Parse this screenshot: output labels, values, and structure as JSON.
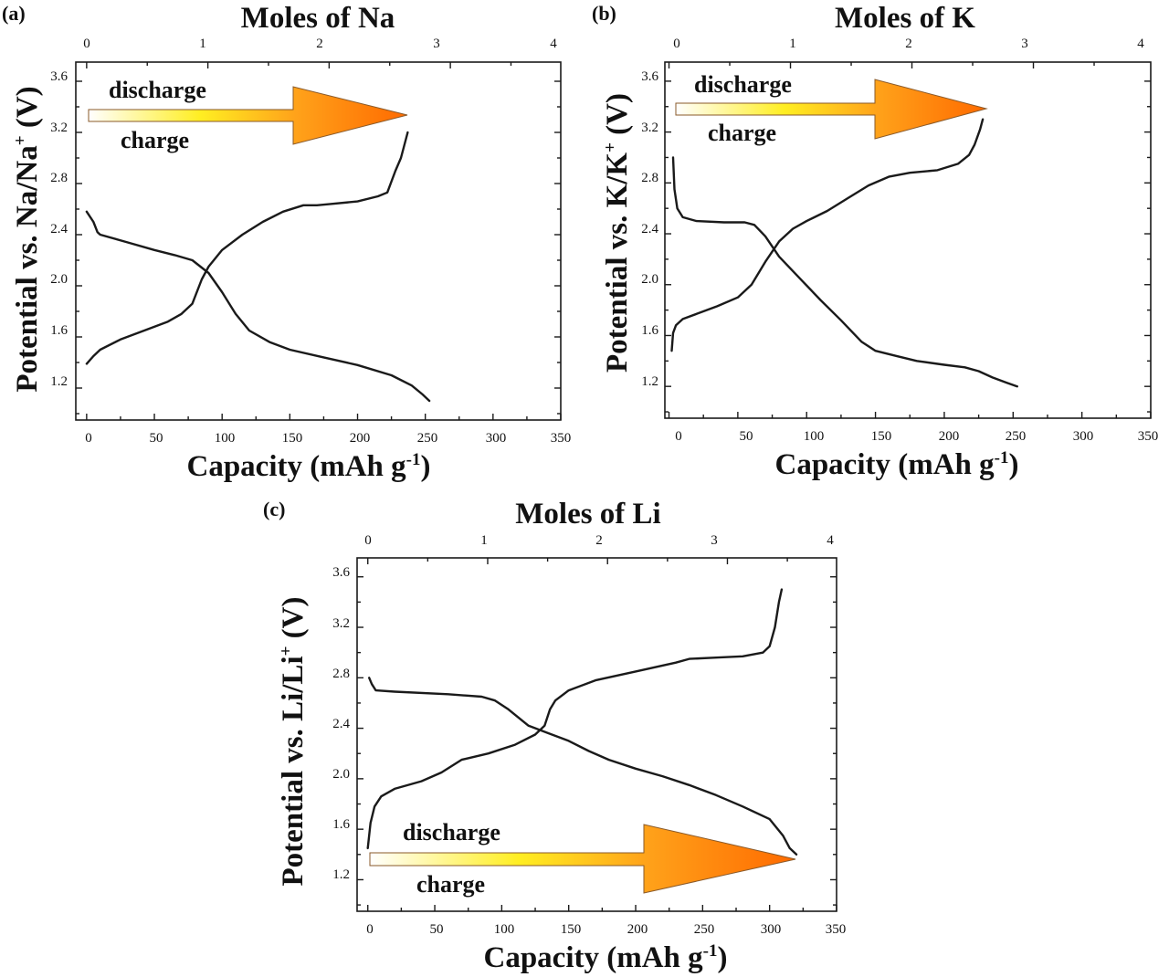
{
  "chart_data": [
    {
      "type": "line",
      "panel_label": "(a)",
      "title": "Moles of  Na",
      "xlabel": "Capacity (mAh g",
      "xlabel_sup": "-1",
      "xlabel_end": ")",
      "ylabel": "Potential vs. Na/Na",
      "ylabel_sup": "+",
      "ylabel_end": " (V)",
      "xlim": [
        -8,
        350
      ],
      "ylim": [
        0.95,
        3.75
      ],
      "top_xlim": [
        0,
        4
      ],
      "xticks": [
        "0",
        "50",
        "100",
        "150",
        "200",
        "250",
        "300",
        "350"
      ],
      "top_xticks": [
        "0",
        "1",
        "2",
        "3",
        "4"
      ],
      "yticks": [
        "1.2",
        "1.6",
        "2.0",
        "2.4",
        "2.8",
        "3.2",
        "3.6"
      ],
      "legend": {
        "top_label": "discharge",
        "bottom_label": "charge",
        "direction": "right",
        "placement": "top-left"
      },
      "series": [
        {
          "name": "discharge",
          "x": [
            0,
            5,
            8,
            10,
            30,
            50,
            65,
            78,
            90,
            100,
            110,
            120,
            135,
            150,
            175,
            200,
            225,
            240,
            248,
            253
          ],
          "y": [
            2.58,
            2.5,
            2.42,
            2.4,
            2.34,
            2.28,
            2.24,
            2.2,
            2.1,
            1.95,
            1.78,
            1.65,
            1.56,
            1.5,
            1.44,
            1.38,
            1.3,
            1.22,
            1.15,
            1.1
          ]
        },
        {
          "name": "charge",
          "x": [
            0,
            5,
            10,
            25,
            45,
            60,
            70,
            78,
            85,
            90,
            100,
            115,
            130,
            145,
            160,
            170,
            180,
            200,
            215,
            222,
            228,
            232,
            237
          ],
          "y": [
            1.39,
            1.45,
            1.5,
            1.58,
            1.66,
            1.72,
            1.78,
            1.86,
            2.05,
            2.15,
            2.28,
            2.4,
            2.5,
            2.58,
            2.63,
            2.63,
            2.64,
            2.66,
            2.7,
            2.73,
            2.9,
            3.0,
            3.2
          ]
        }
      ]
    },
    {
      "type": "line",
      "panel_label": "(b)",
      "title": "Moles of K",
      "xlabel": "Capacity (mAh g",
      "xlabel_sup": "-1",
      "xlabel_end": ")",
      "ylabel": "Potential vs. K/K",
      "ylabel_sup": "+",
      "ylabel_end": " (V)",
      "xlim": [
        -3,
        350
      ],
      "ylim": [
        0.95,
        3.75
      ],
      "top_xlim": [
        0,
        4
      ],
      "xticks": [
        "0",
        "50",
        "100",
        "150",
        "200",
        "250",
        "300",
        "350"
      ],
      "top_xticks": [
        "0",
        "1",
        "2",
        "3",
        "4"
      ],
      "yticks": [
        "1.2",
        "1.6",
        "2.0",
        "2.4",
        "2.8",
        "3.2",
        "3.6"
      ],
      "legend": {
        "top_label": "discharge",
        "bottom_label": "charge",
        "direction": "right",
        "placement": "top-left"
      },
      "series": [
        {
          "name": "discharge",
          "x": [
            3,
            4,
            6,
            10,
            20,
            40,
            55,
            62,
            70,
            80,
            95,
            110,
            125,
            140,
            150,
            165,
            180,
            200,
            215,
            225,
            235,
            245,
            253
          ],
          "y": [
            3.0,
            2.75,
            2.6,
            2.53,
            2.5,
            2.49,
            2.49,
            2.47,
            2.38,
            2.22,
            2.05,
            1.88,
            1.72,
            1.55,
            1.48,
            1.44,
            1.4,
            1.37,
            1.35,
            1.32,
            1.27,
            1.23,
            1.2
          ]
        },
        {
          "name": "charge",
          "x": [
            2,
            3,
            5,
            10,
            20,
            35,
            50,
            60,
            70,
            80,
            90,
            100,
            115,
            130,
            145,
            160,
            175,
            195,
            210,
            218,
            222,
            226,
            228
          ],
          "y": [
            1.48,
            1.62,
            1.68,
            1.73,
            1.77,
            1.83,
            1.9,
            2.0,
            2.18,
            2.34,
            2.44,
            2.5,
            2.58,
            2.68,
            2.78,
            2.85,
            2.88,
            2.9,
            2.95,
            3.02,
            3.1,
            3.22,
            3.3
          ]
        }
      ]
    },
    {
      "type": "line",
      "panel_label": "(c)",
      "title": "Moles of Li",
      "xlabel": "Capacity (mAh g",
      "xlabel_sup": "-1",
      "xlabel_end": ")",
      "ylabel": "Potential vs. Li/Li",
      "ylabel_sup": "+",
      "ylabel_end": " (V)",
      "xlim": [
        -8,
        350
      ],
      "ylim": [
        0.95,
        3.75
      ],
      "top_xlim": [
        0,
        4
      ],
      "xticks": [
        "0",
        "50",
        "100",
        "150",
        "200",
        "250",
        "300",
        "350"
      ],
      "top_xticks": [
        "0",
        "1",
        "2",
        "3",
        "4"
      ],
      "yticks": [
        "1.2",
        "1.6",
        "2.0",
        "2.4",
        "2.8",
        "3.2",
        "3.6"
      ],
      "legend": {
        "top_label": "discharge",
        "bottom_label": "charge",
        "direction": "right",
        "placement": "bottom-left"
      },
      "series": [
        {
          "name": "discharge",
          "x": [
            1,
            3,
            6,
            20,
            60,
            85,
            95,
            105,
            120,
            135,
            150,
            165,
            180,
            200,
            220,
            240,
            260,
            280,
            300,
            310,
            315,
            320
          ],
          "y": [
            2.8,
            2.75,
            2.7,
            2.69,
            2.67,
            2.65,
            2.62,
            2.55,
            2.42,
            2.36,
            2.3,
            2.22,
            2.15,
            2.08,
            2.02,
            1.95,
            1.87,
            1.78,
            1.68,
            1.55,
            1.45,
            1.4
          ]
        },
        {
          "name": "charge",
          "x": [
            0,
            2,
            5,
            10,
            20,
            40,
            55,
            70,
            90,
            110,
            125,
            132,
            136,
            140,
            150,
            170,
            200,
            230,
            240,
            260,
            280,
            295,
            300,
            304,
            307,
            309
          ],
          "y": [
            1.45,
            1.65,
            1.78,
            1.86,
            1.92,
            1.98,
            2.05,
            2.15,
            2.2,
            2.27,
            2.35,
            2.42,
            2.55,
            2.62,
            2.7,
            2.78,
            2.85,
            2.92,
            2.95,
            2.96,
            2.97,
            3.0,
            3.05,
            3.2,
            3.4,
            3.5
          ]
        }
      ]
    }
  ]
}
